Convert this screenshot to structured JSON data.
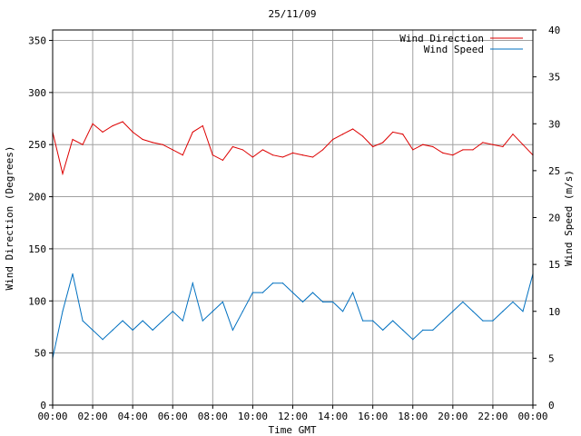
{
  "chart_data": {
    "type": "line",
    "title": "25/11/09",
    "xlabel": "Time GMT",
    "ylabel": "Wind Direction (Degrees)",
    "y2label": "Wind Speed (m/s)",
    "xlim": [
      0,
      24
    ],
    "ylim": [
      0,
      360
    ],
    "y2lim": [
      0,
      40
    ],
    "x_ticks": [
      "00:00",
      "02:00",
      "04:00",
      "06:00",
      "08:00",
      "10:00",
      "12:00",
      "14:00",
      "16:00",
      "18:00",
      "20:00",
      "22:00",
      "00:00"
    ],
    "y_ticks": [
      0,
      50,
      100,
      150,
      200,
      250,
      300,
      350
    ],
    "y2_ticks": [
      0,
      5,
      10,
      15,
      20,
      25,
      30,
      35,
      40
    ],
    "grid": true,
    "legend_position": "top-right",
    "series": [
      {
        "name": "Wind Direction",
        "axis": "left",
        "color": "#dd0000",
        "x": [
          0,
          0.5,
          1,
          1.5,
          2,
          2.5,
          3,
          3.5,
          4,
          4.5,
          5,
          5.5,
          6,
          6.5,
          7,
          7.5,
          8,
          8.5,
          9,
          9.5,
          10,
          10.5,
          11,
          11.5,
          12,
          12.5,
          13,
          13.5,
          14,
          14.5,
          15,
          15.5,
          16,
          16.5,
          17,
          17.5,
          18,
          18.5,
          19,
          19.5,
          20,
          20.5,
          21,
          21.5,
          22,
          22.5,
          23,
          23.5,
          24
        ],
        "values": [
          262,
          222,
          255,
          250,
          270,
          262,
          268,
          272,
          262,
          255,
          252,
          250,
          245,
          240,
          262,
          268,
          240,
          235,
          248,
          245,
          238,
          245,
          240,
          238,
          242,
          240,
          238,
          245,
          255,
          260,
          265,
          258,
          248,
          252,
          262,
          260,
          245,
          250,
          248,
          242,
          240,
          245,
          245,
          252,
          250,
          248,
          260,
          250,
          240
        ]
      },
      {
        "name": "Wind Speed",
        "axis": "right",
        "color": "#0070c0",
        "x": [
          0,
          0.5,
          1,
          1.5,
          2,
          2.5,
          3,
          3.5,
          4,
          4.5,
          5,
          5.5,
          6,
          6.5,
          7,
          7.5,
          8,
          8.5,
          9,
          9.5,
          10,
          10.5,
          11,
          11.5,
          12,
          12.5,
          13,
          13.5,
          14,
          14.5,
          15,
          15.5,
          16,
          16.5,
          17,
          17.5,
          18,
          18.5,
          19,
          19.5,
          20,
          20.5,
          21,
          21.5,
          22,
          22.5,
          23,
          23.5,
          24
        ],
        "values": [
          5,
          10,
          14,
          9,
          8,
          7,
          8,
          9,
          8,
          9,
          8,
          9,
          10,
          9,
          13,
          9,
          10,
          11,
          8,
          10,
          12,
          12,
          13,
          13,
          12,
          11,
          12,
          11,
          11,
          10,
          12,
          9,
          9,
          8,
          9,
          8,
          7,
          8,
          8,
          9,
          10,
          11,
          10,
          9,
          9,
          10,
          11,
          10,
          14
        ]
      }
    ]
  }
}
